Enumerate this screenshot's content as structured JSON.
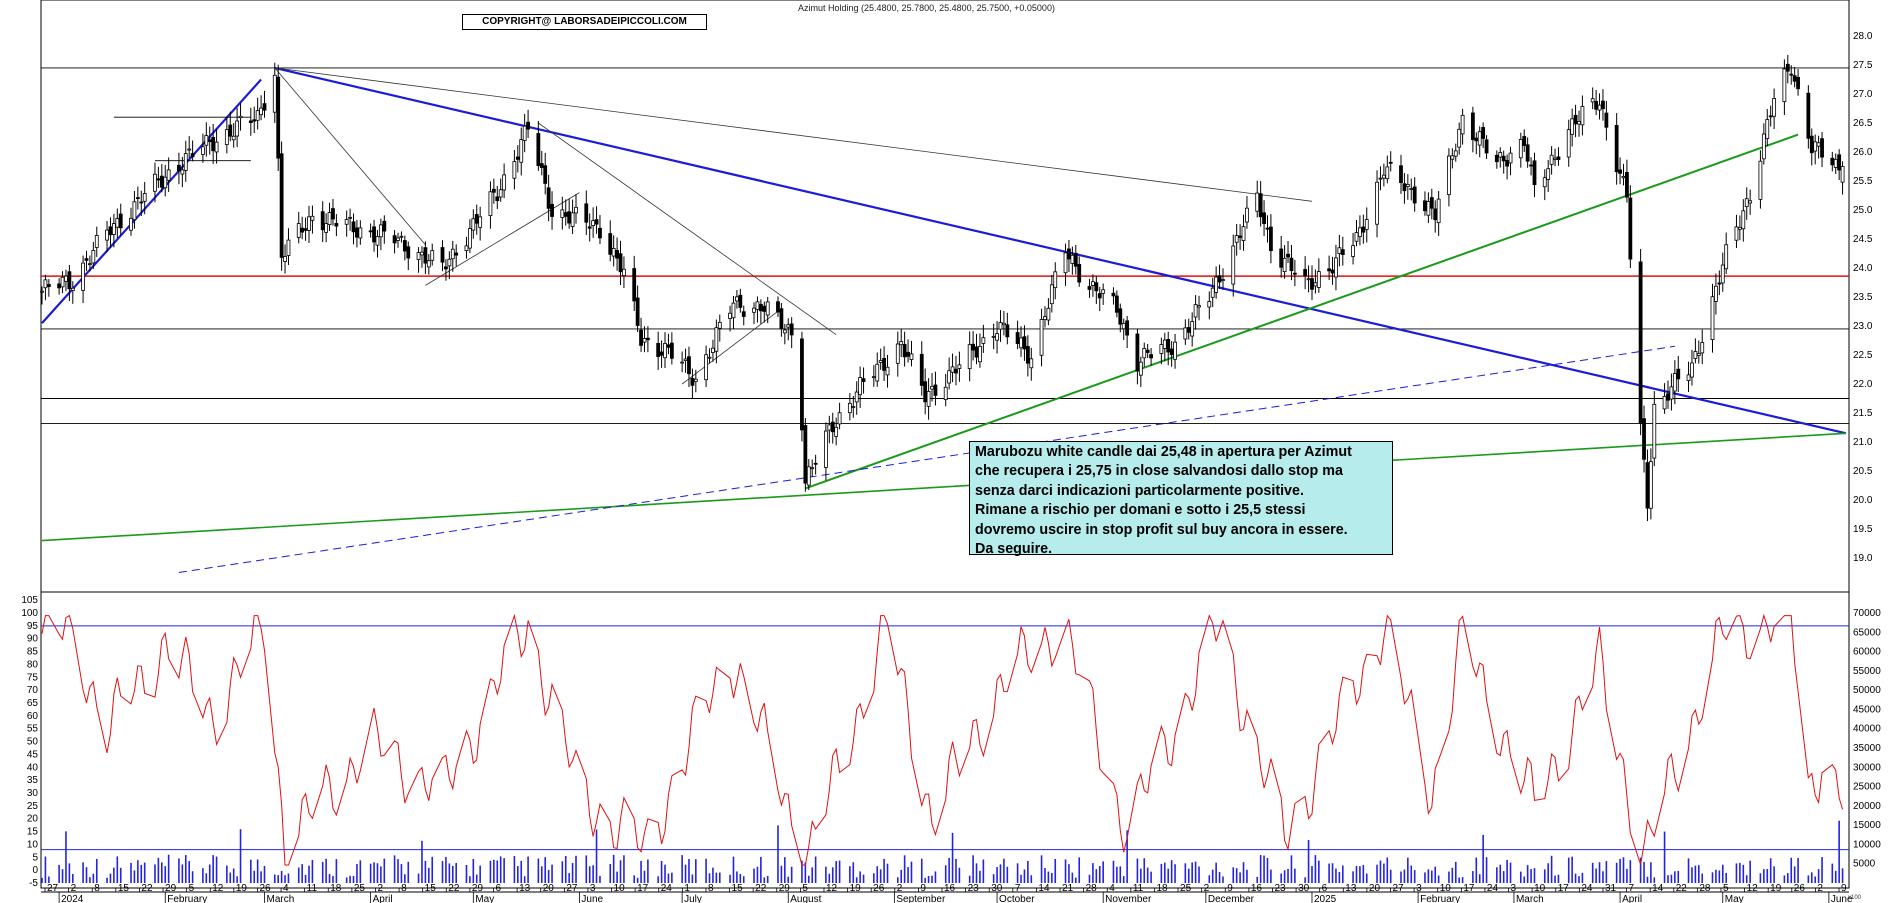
{
  "header": {
    "title": "Azimut Holding (25.4800, 25.7800, 25.4800, 25.7500, +0.05000)",
    "copyright": "COPYRIGHT@ LABORSADEIPICCOLI.COM"
  },
  "note": {
    "lines": [
      "Marubozu white candle dai 25,48 in apertura per Azimut",
      "che recupera i 25,75 in close salvandosi dallo stop ma",
      "senza darci indicazioni particolarmente positive.",
      "Rimane a rischio per domani e sotto i 25,5 stessi",
      "dovremo uscire in stop profit sul buy ancora in essere.",
      "Da seguire."
    ]
  },
  "colors": {
    "trendline_blue": "#1c1cd8",
    "trendline_green": "#1a9a1a",
    "support_red": "#e01010",
    "stochastic_red": "#e01010",
    "volume_blue": "#2424e0",
    "note_background": "#b6ecec"
  },
  "chart_data": [
    {
      "type": "candlestick",
      "name": "price",
      "ylim": [
        18.5,
        28.5
      ],
      "yticks": [
        "28.0",
        "27.5",
        "27.0",
        "26.5",
        "26.0",
        "25.5",
        "25.0",
        "24.5",
        "24.0",
        "23.5",
        "23.0",
        "22.5",
        "22.0",
        "21.5",
        "21.0",
        "20.5",
        "20.0",
        "19.5",
        "19.0"
      ],
      "x_day_labels": [
        "27",
        "2",
        "8",
        "15",
        "22",
        "29",
        "5",
        "12",
        "19",
        "26",
        "4",
        "11",
        "18",
        "25",
        "2",
        "8",
        "15",
        "22",
        "29",
        "6",
        "13",
        "20",
        "27",
        "3",
        "10",
        "17",
        "24",
        "1",
        "8",
        "15",
        "22",
        "29",
        "5",
        "12",
        "19",
        "26",
        "2",
        "9",
        "16",
        "23",
        "30",
        "7",
        "14",
        "21",
        "28",
        "4",
        "11",
        "18",
        "25",
        "2",
        "9",
        "16",
        "23",
        "30",
        "6",
        "13",
        "20",
        "27",
        "3",
        "10",
        "17",
        "24",
        "3",
        "10",
        "17",
        "24",
        "31",
        "7",
        "14",
        "22",
        "28",
        "5",
        "12",
        "19",
        "26",
        "2",
        "9"
      ],
      "x_month_labels": [
        "2024",
        "February",
        "March",
        "April",
        "May",
        "June",
        "July",
        "August",
        "September",
        "October",
        "November",
        "December",
        "2025",
        "February",
        "March",
        "April",
        "May",
        "June"
      ],
      "close_anchors": [
        {
          "date": "2023-12-27",
          "close": 23.6
        },
        {
          "date": "2024-01-05",
          "close": 23.8
        },
        {
          "date": "2024-01-15",
          "close": 24.6
        },
        {
          "date": "2024-01-25",
          "close": 25.2
        },
        {
          "date": "2024-02-05",
          "close": 25.8
        },
        {
          "date": "2024-02-15",
          "close": 26.2
        },
        {
          "date": "2024-02-28",
          "close": 26.6
        },
        {
          "date": "2024-03-04",
          "close": 27.4
        },
        {
          "date": "2024-03-06",
          "close": 24.2
        },
        {
          "date": "2024-03-15",
          "close": 24.9
        },
        {
          "date": "2024-04-08",
          "close": 24.5
        },
        {
          "date": "2024-04-22",
          "close": 24.0
        },
        {
          "date": "2024-05-08",
          "close": 25.3
        },
        {
          "date": "2024-05-17",
          "close": 26.4
        },
        {
          "date": "2024-05-24",
          "close": 25.0
        },
        {
          "date": "2024-06-07",
          "close": 24.7
        },
        {
          "date": "2024-06-14",
          "close": 23.9
        },
        {
          "date": "2024-06-19",
          "close": 22.8
        },
        {
          "date": "2024-06-28",
          "close": 22.5
        },
        {
          "date": "2024-07-05",
          "close": 22.1
        },
        {
          "date": "2024-07-16",
          "close": 23.4
        },
        {
          "date": "2024-07-25",
          "close": 23.3
        },
        {
          "date": "2024-08-02",
          "close": 22.9
        },
        {
          "date": "2024-08-05",
          "close": 21.4
        },
        {
          "date": "2024-08-06",
          "close": 20.3
        },
        {
          "date": "2024-08-14",
          "close": 21.3
        },
        {
          "date": "2024-08-23",
          "close": 22.0
        },
        {
          "date": "2024-09-03",
          "close": 22.7
        },
        {
          "date": "2024-09-10",
          "close": 21.8
        },
        {
          "date": "2024-09-20",
          "close": 22.3
        },
        {
          "date": "2024-10-01",
          "close": 23.0
        },
        {
          "date": "2024-10-11",
          "close": 22.5
        },
        {
          "date": "2024-10-21",
          "close": 24.3
        },
        {
          "date": "2024-10-28",
          "close": 23.7
        },
        {
          "date": "2024-11-05",
          "close": 23.3
        },
        {
          "date": "2024-11-11",
          "close": 22.4
        },
        {
          "date": "2024-11-22",
          "close": 22.7
        },
        {
          "date": "2024-12-02",
          "close": 23.5
        },
        {
          "date": "2024-12-11",
          "close": 24.6
        },
        {
          "date": "2024-12-16",
          "close": 25.2
        },
        {
          "date": "2024-12-20",
          "close": 24.4
        },
        {
          "date": "2024-12-30",
          "close": 23.7
        },
        {
          "date": "2025-01-08",
          "close": 24.1
        },
        {
          "date": "2025-01-14",
          "close": 24.5
        },
        {
          "date": "2025-01-22",
          "close": 25.7
        },
        {
          "date": "2025-01-31",
          "close": 25.3
        },
        {
          "date": "2025-02-06",
          "close": 24.9
        },
        {
          "date": "2025-02-14",
          "close": 26.6
        },
        {
          "date": "2025-02-24",
          "close": 25.8
        },
        {
          "date": "2025-03-04",
          "close": 26.2
        },
        {
          "date": "2025-03-07",
          "close": 25.3
        },
        {
          "date": "2025-03-17",
          "close": 26.4
        },
        {
          "date": "2025-03-26",
          "close": 26.9
        },
        {
          "date": "2025-04-03",
          "close": 25.2
        },
        {
          "date": "2025-04-07",
          "close": 21.2
        },
        {
          "date": "2025-04-09",
          "close": 20.0
        },
        {
          "date": "2025-04-11",
          "close": 21.6
        },
        {
          "date": "2025-04-22",
          "close": 22.3
        },
        {
          "date": "2025-05-02",
          "close": 24.2
        },
        {
          "date": "2025-05-09",
          "close": 25.3
        },
        {
          "date": "2025-05-16",
          "close": 26.9
        },
        {
          "date": "2025-05-21",
          "close": 27.5
        },
        {
          "date": "2025-05-27",
          "close": 26.1
        },
        {
          "date": "2025-06-04",
          "close": 25.7
        },
        {
          "date": "2025-06-05",
          "close": 25.75
        }
      ],
      "last_candle": {
        "open": 25.48,
        "high": 25.78,
        "low": 25.48,
        "close": 25.75,
        "change": 0.05
      },
      "horizontal_levels": [
        {
          "value": 27.45,
          "color": "black"
        },
        {
          "value": 23.86,
          "color": "red"
        },
        {
          "value": 22.95,
          "color": "black"
        },
        {
          "value": 21.75,
          "color": "black"
        },
        {
          "value": 21.32,
          "color": "black"
        }
      ]
    },
    {
      "type": "line+bar",
      "name": "oscillator-volume",
      "ylim_left": [
        0,
        105
      ],
      "ylim_right": [
        0,
        70000
      ],
      "left_ticks": [
        "105",
        "100",
        "95",
        "90",
        "85",
        "80",
        "75",
        "70",
        "65",
        "60",
        "55",
        "50",
        "45",
        "40",
        "35",
        "30",
        "25",
        "20",
        "15",
        "10",
        "5",
        "0",
        "-5"
      ],
      "right_ticks": [
        "70000",
        "65000",
        "60000",
        "55000",
        "50000",
        "45000",
        "40000",
        "35000",
        "30000",
        "25000",
        "20000",
        "15000",
        "10000",
        "5000"
      ],
      "levels": [
        95,
        8
      ],
      "oscillator_anchors": [
        {
          "date": "2024-01-05",
          "value": 92
        },
        {
          "date": "2024-01-15",
          "value": 55
        },
        {
          "date": "2024-02-01",
          "value": 88
        },
        {
          "date": "2024-02-15",
          "value": 60
        },
        {
          "date": "2024-03-01",
          "value": 95
        },
        {
          "date": "2024-03-07",
          "value": 10
        },
        {
          "date": "2024-04-01",
          "value": 50
        },
        {
          "date": "2024-04-22",
          "value": 30
        },
        {
          "date": "2024-05-17",
          "value": 96
        },
        {
          "date": "2024-06-01",
          "value": 30
        },
        {
          "date": "2024-06-20",
          "value": 8
        },
        {
          "date": "2024-07-15",
          "value": 85
        },
        {
          "date": "2024-08-07",
          "value": 5
        },
        {
          "date": "2024-08-30",
          "value": 96
        },
        {
          "date": "2024-09-12",
          "value": 20
        },
        {
          "date": "2024-10-01",
          "value": 70
        },
        {
          "date": "2024-10-20",
          "value": 97
        },
        {
          "date": "2024-11-08",
          "value": 15
        },
        {
          "date": "2024-12-05",
          "value": 95
        },
        {
          "date": "2024-12-24",
          "value": 12
        },
        {
          "date": "2025-01-22",
          "value": 96
        },
        {
          "date": "2025-02-05",
          "value": 30
        },
        {
          "date": "2025-02-14",
          "value": 90
        },
        {
          "date": "2025-03-07",
          "value": 25
        },
        {
          "date": "2025-03-26",
          "value": 80
        },
        {
          "date": "2025-04-08",
          "value": 5
        },
        {
          "date": "2025-05-01",
          "value": 92
        },
        {
          "date": "2025-05-21",
          "value": 99
        },
        {
          "date": "2025-05-26",
          "value": 30
        },
        {
          "date": "2025-05-30",
          "value": 45
        },
        {
          "date": "2025-06-05",
          "value": 28
        }
      ]
    }
  ]
}
